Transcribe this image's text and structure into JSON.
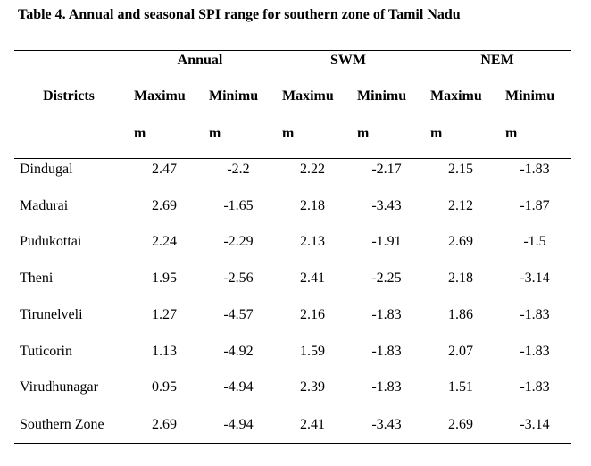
{
  "caption": "Table 4. Annual and seasonal SPI range for southern zone of Tamil Nadu",
  "header": {
    "districts": "Districts",
    "groups": [
      "Annual",
      "SWM",
      "NEM"
    ],
    "sub_line1": "Maximu",
    "sub_line2": "m",
    "sub_min_line1": "Minimu",
    "sub_min_line2": "m"
  },
  "rows": [
    {
      "district": "Dindugal",
      "values": [
        "2.47",
        "-2.2",
        "2.22",
        "-2.17",
        "2.15",
        "-1.83"
      ]
    },
    {
      "district": "Madurai",
      "values": [
        "2.69",
        "-1.65",
        "2.18",
        "-3.43",
        "2.12",
        "-1.87"
      ]
    },
    {
      "district": "Pudukottai",
      "values": [
        "2.24",
        "-2.29",
        "2.13",
        "-1.91",
        "2.69",
        "-1.5"
      ]
    },
    {
      "district": "Theni",
      "values": [
        "1.95",
        "-2.56",
        "2.41",
        "-2.25",
        "2.18",
        "-3.14"
      ]
    },
    {
      "district": "Tirunelveli",
      "values": [
        "1.27",
        "-4.57",
        "2.16",
        "-1.83",
        "1.86",
        "-1.83"
      ]
    },
    {
      "district": "Tuticorin",
      "values": [
        "1.13",
        "-4.92",
        "1.59",
        "-1.83",
        "2.07",
        "-1.83"
      ]
    },
    {
      "district": "Virudhunagar",
      "values": [
        "0.95",
        "-4.94",
        "2.39",
        "-1.83",
        "1.51",
        "-1.83"
      ]
    }
  ],
  "summary": {
    "district": "Southern Zone",
    "values": [
      "2.69",
      "-4.94",
      "2.41",
      "-3.43",
      "2.69",
      "-3.14"
    ]
  }
}
